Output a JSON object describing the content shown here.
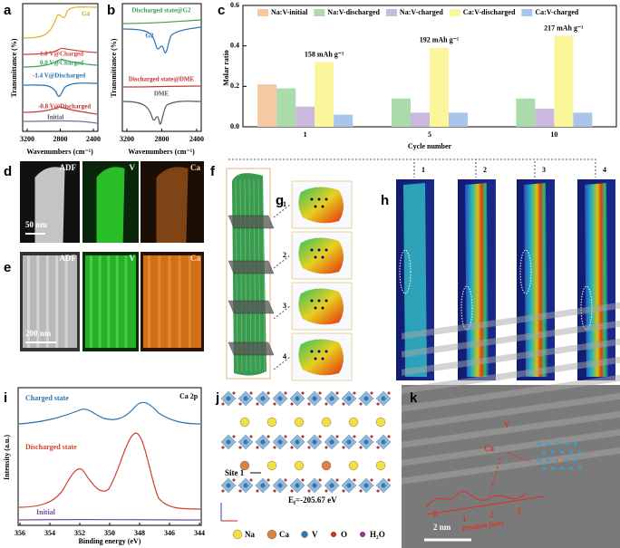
{
  "panel_labels": [
    "a",
    "b",
    "c",
    "d",
    "e",
    "f",
    "g",
    "h",
    "i",
    "j",
    "k"
  ],
  "panel_a": {
    "y_label": "Transmittance (%)",
    "x_label": "Wavenumbers (cm⁻¹)",
    "xticks": [
      3200,
      2800,
      2400
    ],
    "curve_labels": [
      "G4",
      "1.0 V@Charged",
      "0.0 V@Charged",
      "-1.4 V@Discharged",
      "-0.8 V@Discharged",
      "Initial"
    ]
  },
  "panel_b": {
    "y_label": "Transmittance (%)",
    "x_label": "Wavenumbers (cm⁻¹)",
    "xticks": [
      3200,
      2800,
      2400
    ],
    "curve_labels": [
      "Discharged state@G2",
      "G2",
      "Discharged state@DME",
      "DME"
    ]
  },
  "chart_data": {
    "type": "bar",
    "x_label": "Cycle number",
    "y_label": "Molar ratio",
    "categories": [
      "1",
      "5",
      "10"
    ],
    "series": [
      {
        "name": "Na:V-initial",
        "color": "#f5c9a2",
        "values": [
          0.21,
          null,
          null
        ]
      },
      {
        "name": "Na:V-discharged",
        "color": "#a9dcaa",
        "values": [
          0.19,
          0.14,
          0.14
        ]
      },
      {
        "name": "Na:V-charged",
        "color": "#cbb9dd",
        "values": [
          0.1,
          0.07,
          0.09
        ]
      },
      {
        "name": "Ca:V-discharged",
        "color": "#fbf69c",
        "values": [
          0.32,
          0.39,
          0.45
        ]
      },
      {
        "name": "Ca:V-charged",
        "color": "#a9c5eb",
        "values": [
          0.06,
          0.07,
          0.07
        ]
      }
    ],
    "annotations": [
      "158 mAh g⁻¹",
      "192 mAh g⁻¹",
      "217 mAh g⁻¹"
    ],
    "ylim": [
      0,
      0.6
    ],
    "yticks": [
      {
        "value": 0,
        "label": "0.0"
      },
      0.2,
      0.4,
      0.6
    ]
  },
  "panel_d": {
    "labels": [
      "ADF",
      "V",
      "Ca"
    ],
    "scale": "50 nm"
  },
  "panel_e": {
    "labels": [
      "ADF",
      "V",
      "Ca"
    ],
    "scale": "200 nm"
  },
  "panel_g": {
    "slice_labels": [
      "1",
      "2",
      "3",
      "4"
    ]
  },
  "panel_h": {
    "labels": [
      "1",
      "2",
      "3",
      "4"
    ]
  },
  "panel_i": {
    "title": "Ca 2p",
    "y_label": "Intensity (a.u.)",
    "x_label": "Binding energy (eV)",
    "xticks": [
      356,
      354,
      352,
      350,
      348,
      346,
      344
    ],
    "curve_labels": [
      "Charged state",
      "Discharged state",
      "Initial"
    ]
  },
  "panel_j": {
    "site_label": "Site 1",
    "energy": {
      "symbol": "E",
      "subscript": "f",
      "text": "=-205.67 eV"
    },
    "legend": [
      "Na",
      "Ca",
      "V",
      "O",
      "H₂O"
    ]
  },
  "panel_k": {
    "labels": [
      "V",
      "Ca"
    ],
    "axis_label": "Position (nm)",
    "ticks": [
      "0",
      "1",
      "2",
      "3"
    ],
    "scale": "2 nm"
  }
}
